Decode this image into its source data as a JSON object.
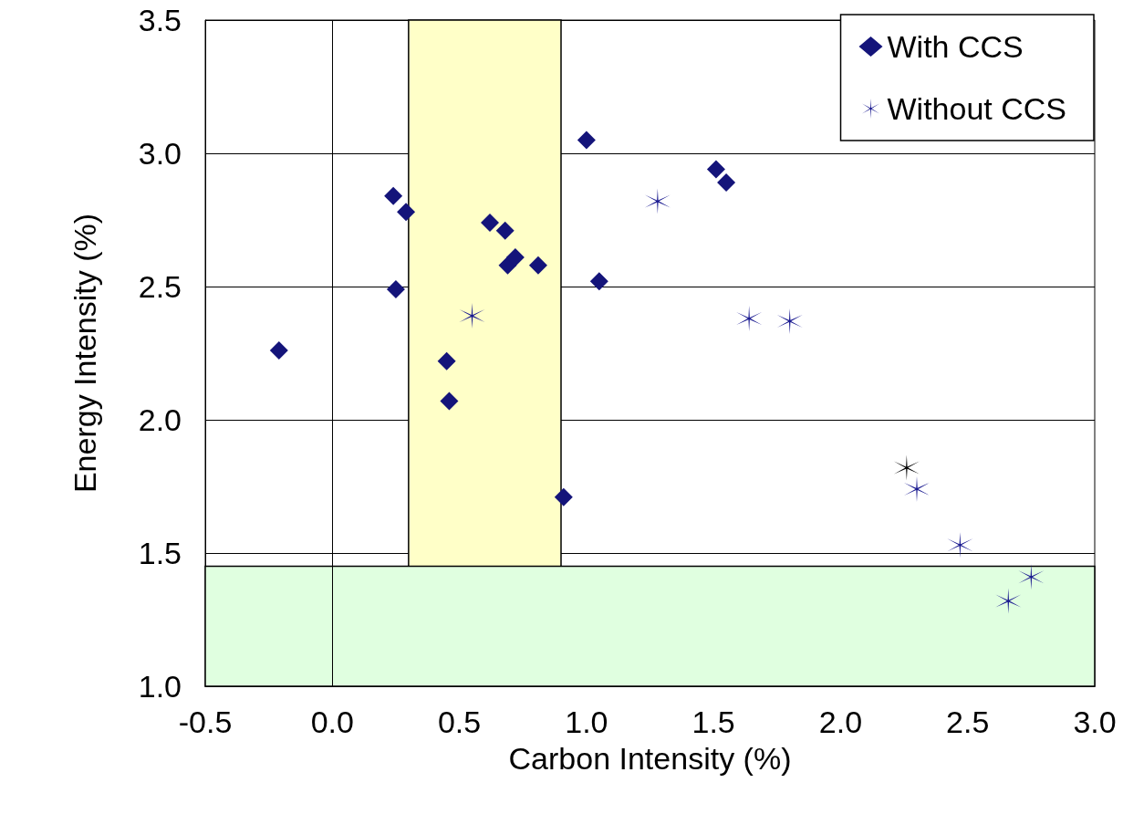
{
  "chart_data": {
    "type": "scatter",
    "xlabel": "Carbon Intensity (%)",
    "ylabel": "Energy Intensity (%)",
    "xlim": [
      -0.5,
      3.0
    ],
    "ylim": [
      1.0,
      3.5
    ],
    "xticks": [
      -0.5,
      {
        "value": 0,
        "label": "0.0"
      },
      0.5,
      {
        "value": 1,
        "label": "1.0"
      },
      1.5,
      {
        "value": 2,
        "label": "2.0"
      },
      2.5,
      {
        "value": 3,
        "label": "3.0"
      }
    ],
    "yticks": [
      {
        "value": 1,
        "label": "1.0"
      },
      1.5,
      {
        "value": 2,
        "label": "2.0"
      },
      2.5,
      {
        "value": 3,
        "label": "3.0"
      },
      3.5
    ],
    "grid": "y",
    "legend": "top right",
    "bands": [
      {
        "axis": "x",
        "from": 0.3,
        "to": 0.9,
        "color": "#ffffc8"
      },
      {
        "axis": "y",
        "from": 1.0,
        "to": 1.45,
        "color": "#e0ffe0"
      }
    ],
    "ref_lines": [
      {
        "axis": "x",
        "value": 0,
        "color": "#000000"
      }
    ],
    "series": [
      {
        "name": "With CCS",
        "marker": "diamond",
        "color": "#14147a",
        "x": [
          -0.21,
          0.24,
          0.29,
          0.25,
          0.45,
          0.46,
          0.62,
          0.68,
          0.69,
          0.72,
          0.81,
          0.91,
          1.0,
          1.05,
          1.51,
          1.55
        ],
        "values": [
          2.26,
          2.84,
          2.78,
          2.49,
          2.22,
          2.07,
          2.74,
          2.71,
          2.58,
          2.61,
          2.58,
          1.71,
          3.05,
          2.52,
          2.94,
          2.89
        ]
      },
      {
        "name": "Without CCS",
        "marker": "cross",
        "color": "#1a1a90",
        "x": [
          0.55,
          1.28,
          1.64,
          1.8,
          2.26,
          2.3,
          2.47,
          2.66,
          2.75
        ],
        "values": [
          2.39,
          2.82,
          2.38,
          2.37,
          1.82,
          1.74,
          1.53,
          1.32,
          1.41
        ],
        "colors": [
          "#1a1a90",
          "#1a1a90",
          "#1a1a90",
          "#1a1a90",
          "#000000",
          "#1a1a90",
          "#1a1a90",
          "#1a1a90",
          "#1a1a90"
        ]
      }
    ]
  }
}
